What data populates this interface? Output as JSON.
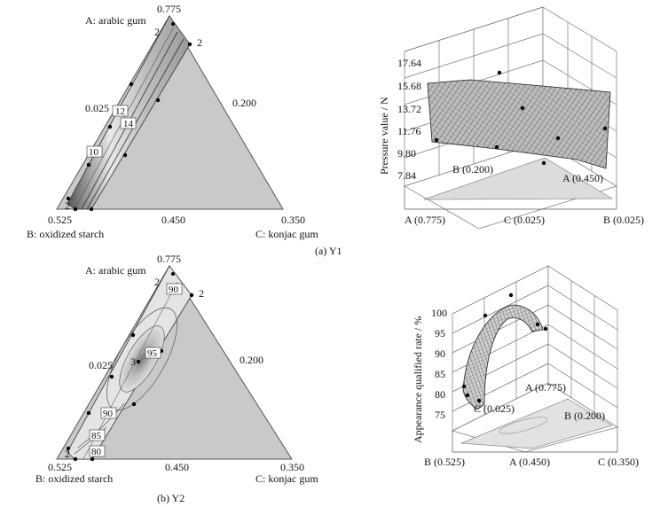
{
  "panels": [
    {
      "caption": "(a) Y1",
      "ternary": {
        "vertex_a_label": "A: arabic gum",
        "vertex_b_label": "B: oxidized starch",
        "vertex_c_label": "C: konjac gum",
        "tick_top": "0.775",
        "tick_left_mid": "0.025",
        "tick_right_mid": "0.200",
        "tick_bottom_left": "0.525",
        "tick_bottom_mid": "0.450",
        "tick_bottom_right": "0.350",
        "replicate_labels": [
          "2",
          "2",
          "2"
        ],
        "contour_labels": [
          "12",
          "14",
          "10"
        ]
      },
      "surface": {
        "ylabel": "Pressure value / N",
        "z_ticks": [
          "17.64",
          "15.68",
          "13.72",
          "11.76",
          "9.80",
          "7.84"
        ],
        "corner_left": "B (0.200)",
        "corner_right": "A (0.450)",
        "axis_left": "A (0.775)",
        "axis_mid": "C (0.025)",
        "axis_right": "B (0.025)"
      }
    },
    {
      "caption": "(b) Y2",
      "ternary": {
        "vertex_a_label": "A: arabic gum",
        "vertex_b_label": "B: oxidized starch",
        "vertex_c_label": "C: konjac gum",
        "tick_top": "0.775",
        "tick_left_mid": "0.025",
        "tick_right_mid": "0.200",
        "tick_bottom_left": "0.525",
        "tick_bottom_mid": "0.450",
        "tick_bottom_right": "0.350",
        "replicate_labels": [
          "2",
          "2",
          "3",
          "2"
        ],
        "contour_labels": [
          "90",
          "95",
          "90",
          "85",
          "80"
        ]
      },
      "surface": {
        "ylabel": "Appearance qualified rate / %",
        "z_ticks": [
          "100",
          "95",
          "90",
          "85",
          "80",
          "75"
        ],
        "corner_left": "C (0.025)",
        "corner_right": "A (0.775)",
        "corner_far": "B (0.200)",
        "axis_left": "B (0.525)",
        "axis_mid": "A (0.450)",
        "axis_right": "C (0.350)"
      }
    }
  ],
  "chart_data": [
    {
      "type": "ternary-contour",
      "response": "Y1",
      "components": [
        "A: arabic gum",
        "B: oxidized starch",
        "C: konjac gum"
      ],
      "contour_levels": [
        10,
        12,
        14
      ]
    },
    {
      "type": "surface",
      "response": "Y1",
      "z_label": "Pressure value / N",
      "z_range": [
        7.84,
        17.64
      ],
      "z_ticks": [
        7.84,
        9.8,
        11.76,
        13.72,
        15.68,
        17.64
      ]
    },
    {
      "type": "ternary-contour",
      "response": "Y2",
      "components": [
        "A: arabic gum",
        "B: oxidized starch",
        "C: konjac gum"
      ],
      "contour_levels": [
        80,
        85,
        90,
        95
      ]
    },
    {
      "type": "surface",
      "response": "Y2",
      "z_label": "Appearance qualified rate / %",
      "z_range": [
        75,
        100
      ],
      "z_ticks": [
        75,
        80,
        85,
        90,
        95,
        100
      ]
    }
  ]
}
